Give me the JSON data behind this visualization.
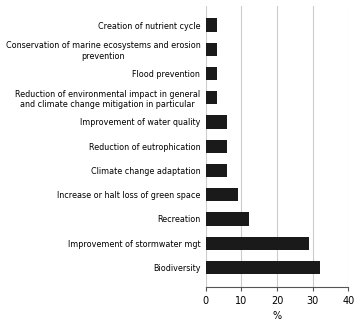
{
  "categories": [
    "Biodiversity",
    "Improvement of stormwater mgt",
    "Recreation",
    "Increase or halt loss of green space",
    "Climate change adaptation",
    "Reduction of eutrophication",
    "Improvement of water quality",
    "Reduction of environmental impact in general\nand climate change mitigation in particular",
    "Flood prevention",
    "Conservation of marine ecosystems and erosion\nprevention",
    "Creation of nutrient cycle"
  ],
  "values": [
    32,
    29,
    12,
    9,
    6,
    6,
    6,
    3,
    3,
    3,
    3
  ],
  "bar_color": "#1a1a1a",
  "xlim": [
    0,
    40
  ],
  "xticks": [
    0,
    10,
    20,
    30,
    40
  ],
  "xlabel": "%",
  "figsize": [
    3.6,
    3.27
  ],
  "dpi": 100,
  "background_color": "#ffffff",
  "grid_color": "#cccccc",
  "label_fontsize": 5.8,
  "tick_fontsize": 7,
  "bar_height": 0.55
}
